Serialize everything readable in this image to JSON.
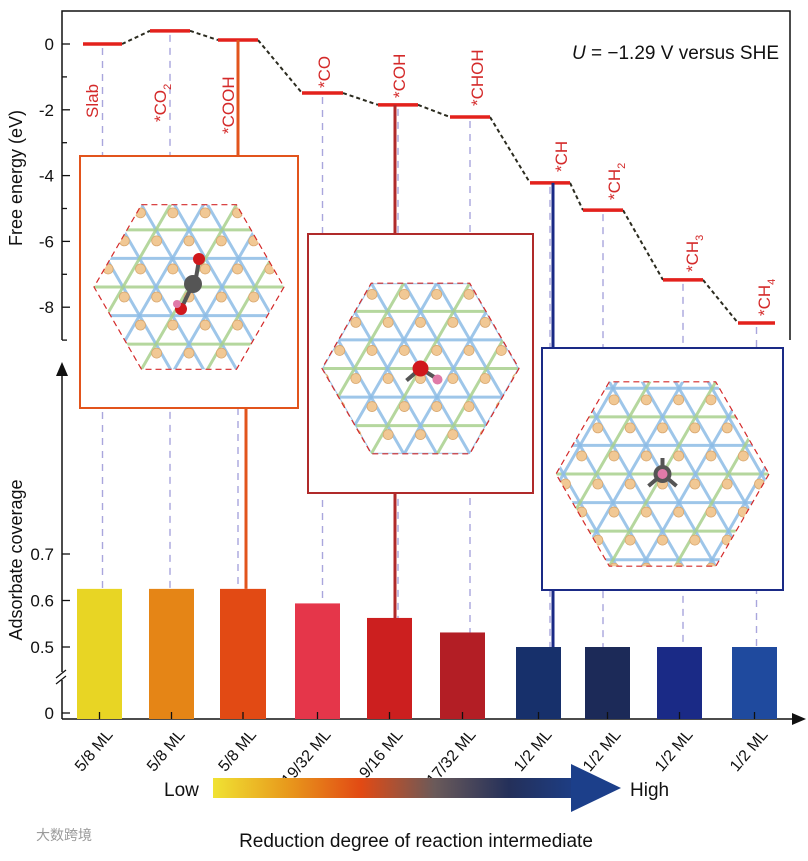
{
  "chart_data": [
    {
      "type": "line",
      "title": "",
      "annotation": {
        "italic": "U",
        "text": " = −1.29 V versus SHE"
      },
      "ylabel": "Free energy (eV)",
      "ylim": [
        -9,
        1
      ],
      "yticks": [
        "0",
        "-2",
        "-4",
        "-6",
        "-8"
      ],
      "ytick_values": [
        0,
        -2,
        -4,
        -6,
        -8
      ],
      "steps": [
        {
          "label": "Slab",
          "sub": "",
          "energy": 0.0
        },
        {
          "label": "*CO",
          "sub": "2",
          "energy": 0.4
        },
        {
          "label": "*COOH",
          "sub": "",
          "energy": 0.12
        },
        {
          "label": "*CO",
          "sub": "",
          "energy": -1.49
        },
        {
          "label": "*COH",
          "sub": "",
          "energy": -1.85
        },
        {
          "label": "*CHOH",
          "sub": "",
          "energy": -2.22
        },
        {
          "label": "*CH",
          "sub": "",
          "energy": -4.22
        },
        {
          "label": "*CH",
          "sub": "2",
          "energy": -5.05
        },
        {
          "label": "*CH",
          "sub": "3",
          "energy": -7.17
        },
        {
          "label": "*CH",
          "sub": "4",
          "energy": -8.48
        }
      ],
      "level_color": "#e3211c",
      "path_color": "#2b2b1f"
    },
    {
      "type": "bar",
      "ylabel": "Adsorbate coverage",
      "yticks": [
        "0",
        "0.5",
        "0.6",
        "0.7"
      ],
      "ytick_values": [
        0,
        0.5,
        0.6,
        0.7
      ],
      "axis_break": true,
      "categories": [
        "5/8 ML",
        "5/8 ML",
        "5/8 ML",
        "19/32 ML",
        "9/16 ML",
        "17/32 ML",
        "1/2 ML",
        "1/2 ML",
        "1/2 ML",
        "1/2 ML"
      ],
      "values": [
        0.625,
        0.625,
        0.625,
        0.59375,
        0.5625,
        0.53125,
        0.5,
        0.5,
        0.5,
        0.5
      ],
      "colors": [
        "#e8d524",
        "#e58516",
        "#e24a14",
        "#e5364a",
        "#cc1f1f",
        "#b31e25",
        "#17306b",
        "#1c2a58",
        "#1a2a86",
        "#1f4a9e"
      ]
    }
  ],
  "insets": [
    {
      "name": "cooh-inset",
      "step_index": 2,
      "color": "#e2541c",
      "molecule": "COOH"
    },
    {
      "name": "coh-inset",
      "step_index": 4,
      "color": "#b02a2a",
      "molecule": "COH"
    },
    {
      "name": "ch-inset",
      "step_index": 6,
      "color": "#1a2a86",
      "molecule": "CH"
    }
  ],
  "legend": {
    "low": "Low",
    "high": "High",
    "caption": "Reduction degree of reaction intermediate"
  },
  "watermark": "大数跨境"
}
